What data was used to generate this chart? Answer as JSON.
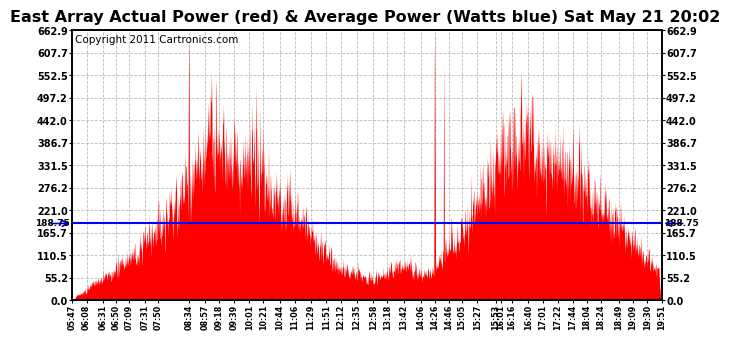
{
  "title": "East Array Actual Power (red) & Average Power (Watts blue) Sat May 21 20:02",
  "copyright": "Copyright 2011 Cartronics.com",
  "avg_power": 188.75,
  "ymin": 0.0,
  "ymax": 662.9,
  "yticks": [
    0.0,
    55.2,
    110.5,
    165.7,
    221.0,
    276.2,
    331.5,
    386.7,
    442.0,
    497.2,
    552.5,
    607.7,
    662.9
  ],
  "xtick_labels": [
    "05:47",
    "06:08",
    "06:31",
    "06:50",
    "07:09",
    "07:31",
    "07:50",
    "08:34",
    "08:57",
    "09:18",
    "09:39",
    "10:01",
    "10:21",
    "10:44",
    "11:06",
    "11:29",
    "11:51",
    "12:12",
    "12:35",
    "12:58",
    "13:18",
    "13:42",
    "14:06",
    "14:26",
    "14:46",
    "15:05",
    "15:27",
    "15:53",
    "16:01",
    "16:16",
    "16:40",
    "17:01",
    "17:22",
    "17:44",
    "18:04",
    "18:24",
    "18:49",
    "19:09",
    "19:30",
    "19:51"
  ],
  "fill_color": "#FF0000",
  "line_color": "#0000FF",
  "bg_color": "#FFFFFF",
  "grid_color": "#BBBBBB",
  "title_fontsize": 11.5,
  "copyright_fontsize": 7.5,
  "avg_label": "188.75",
  "total_minutes": 844
}
